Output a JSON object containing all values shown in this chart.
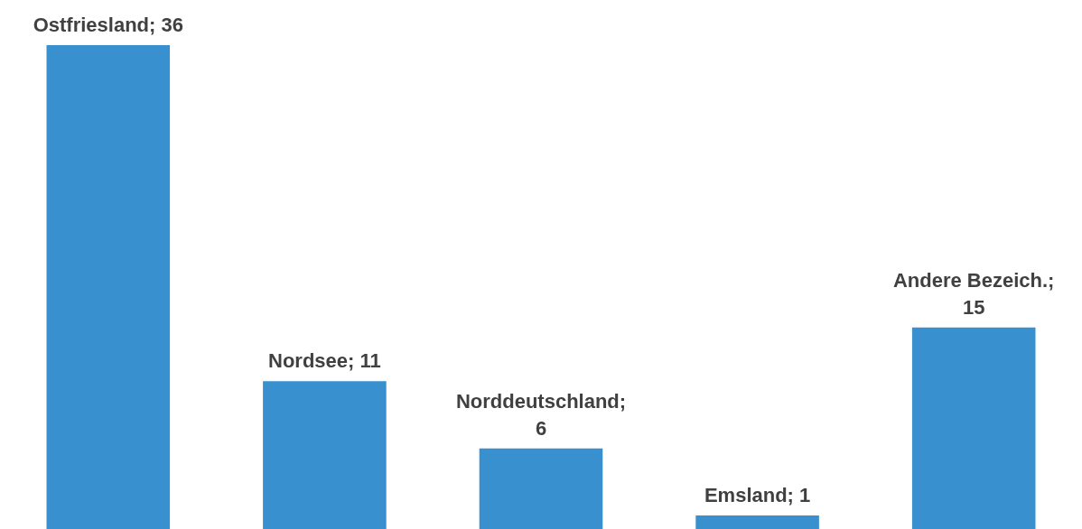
{
  "chart_data": {
    "type": "bar",
    "categories": [
      null,
      null,
      null,
      null,
      null
    ],
    "values": [
      36,
      11,
      6,
      1,
      15
    ],
    "value_labels": [
      "Ostfriesland; 36",
      "Nordsee; 11",
      "Norddeutschland; 6",
      "Emsland; 1",
      "Andere Bezeich.; 15"
    ],
    "color": "#3990cf"
  }
}
